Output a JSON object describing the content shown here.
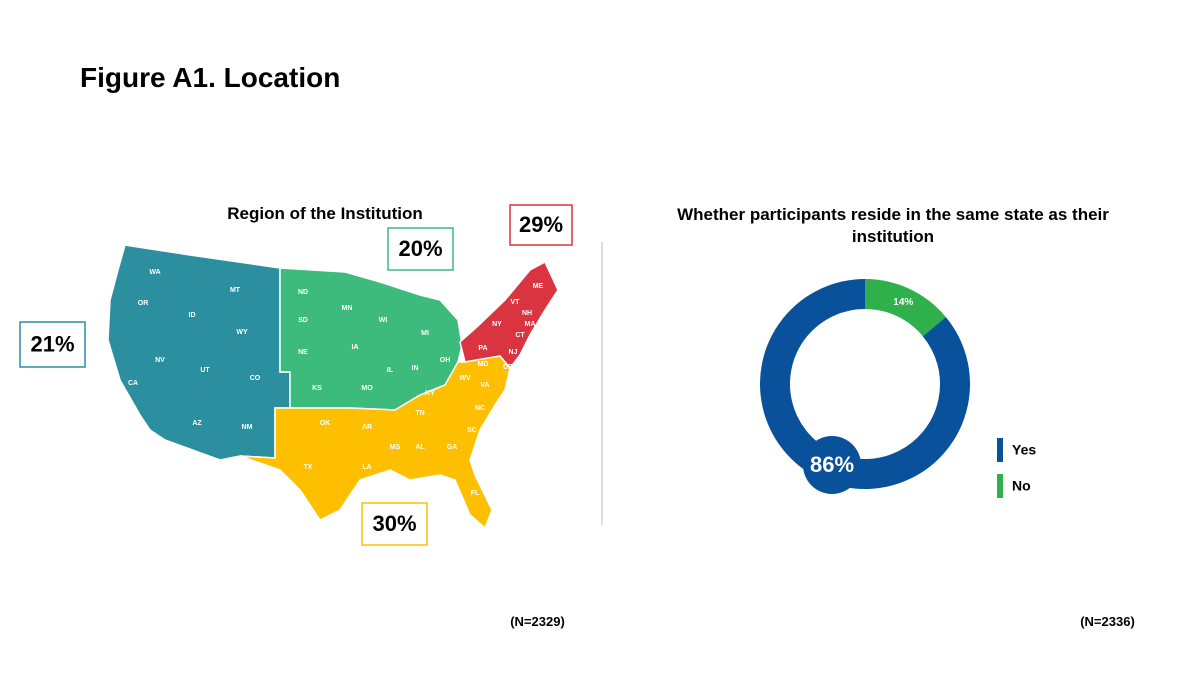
{
  "title": "Figure A1. Location",
  "chart_data": [
    {
      "type": "map",
      "title": "Region of the Institution",
      "note": "(N=2329)",
      "values": [
        21,
        20,
        29,
        30
      ],
      "value_labels": [
        "21%",
        "20%",
        "29%",
        "30%"
      ],
      "colors": [
        "#2b8fa0",
        "#3cbb7d",
        "#d9343f",
        "#fdbf00"
      ],
      "region_states": [
        [
          "WA",
          "OR",
          "CA",
          "NV",
          "ID",
          "MT",
          "WY",
          "UT",
          "CO",
          "AZ",
          "NM"
        ],
        [
          "ND",
          "SD",
          "NE",
          "KS",
          "MN",
          "IA",
          "MO",
          "WI",
          "IL",
          "IN",
          "MI",
          "OH"
        ],
        [
          "ME",
          "VT",
          "NH",
          "MA",
          "NY",
          "CT",
          "RI",
          "PA",
          "NJ"
        ],
        [
          "OK",
          "AR",
          "TX",
          "LA",
          "MS",
          "AL",
          "GA",
          "FL",
          "TN",
          "KY",
          "WV",
          "VA",
          "NC",
          "SC",
          "MD",
          "DE"
        ]
      ]
    },
    {
      "type": "donut",
      "title": "Whether participants reside in the same state as their institution",
      "note": "(N=2336)",
      "categories": [
        "Yes",
        "No"
      ],
      "values": [
        86,
        14
      ],
      "value_labels": [
        "86%",
        "14%"
      ],
      "colors": [
        "#0a519c",
        "#2fb04a"
      ]
    }
  ]
}
